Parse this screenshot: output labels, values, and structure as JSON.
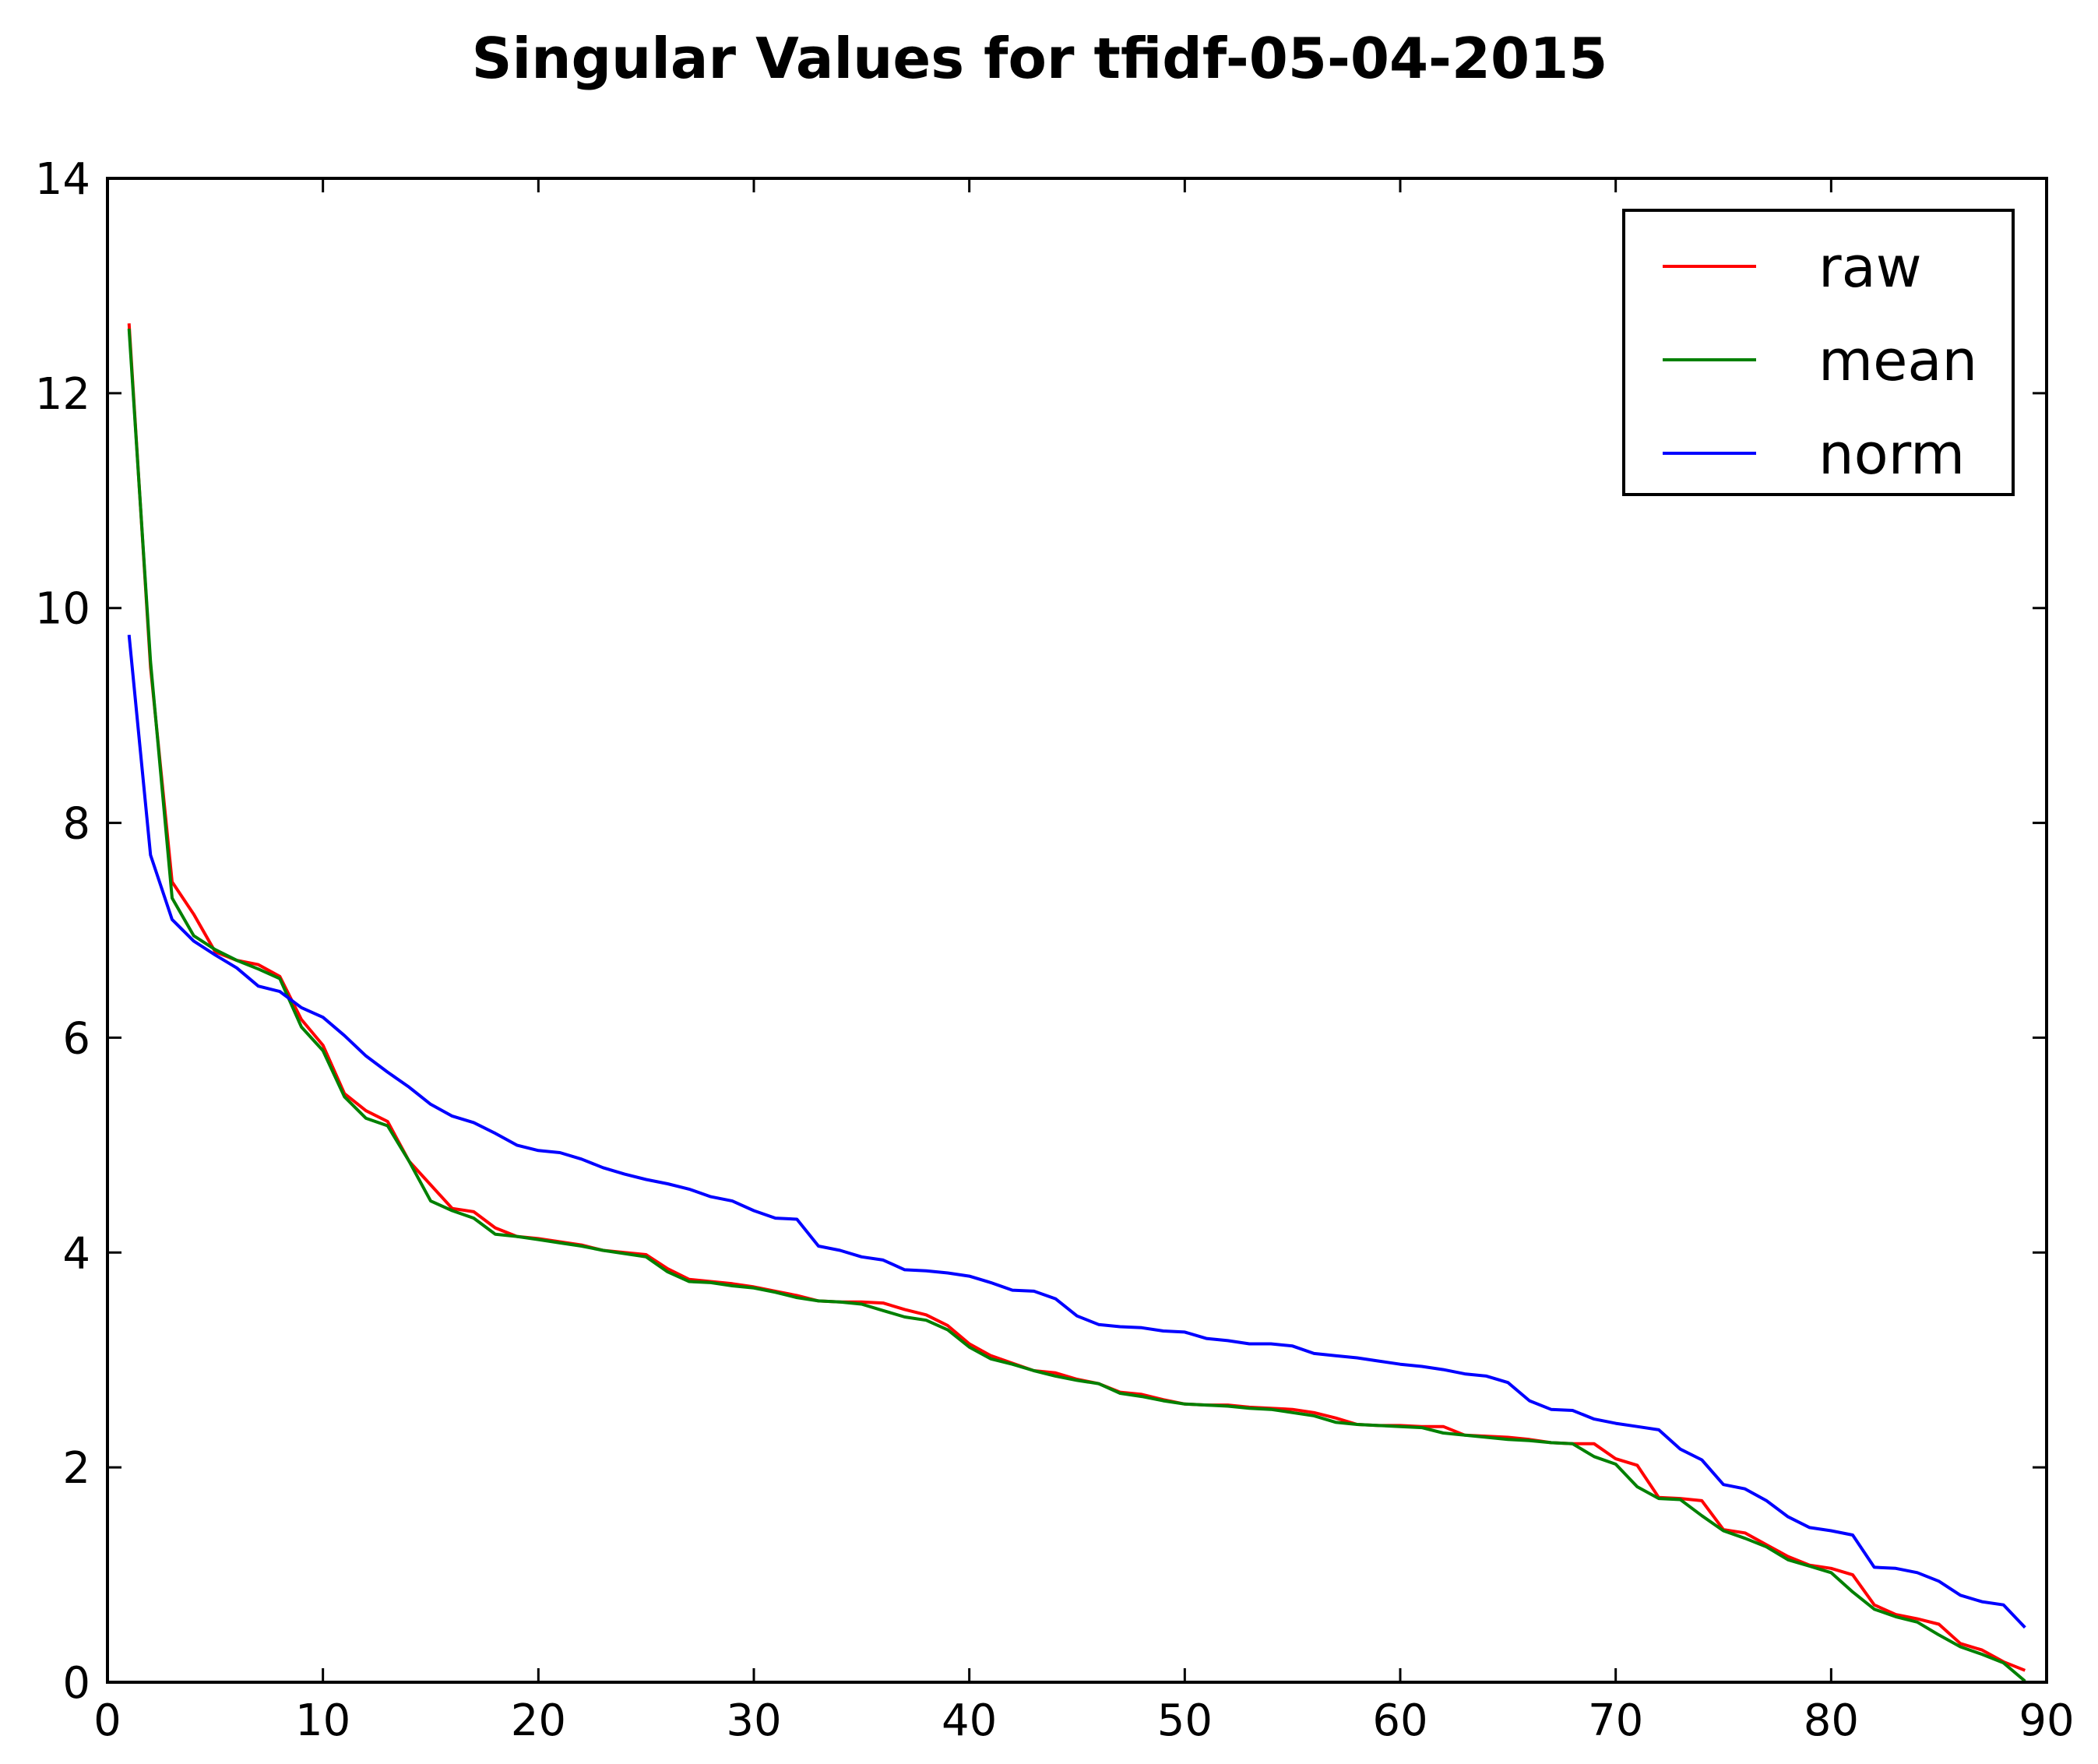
{
  "chart_data": {
    "type": "line",
    "title": "Singular Values for tfidf-05-04-2015",
    "xlabel": "",
    "ylabel": "",
    "xlim": [
      0,
      90
    ],
    "ylim": [
      0,
      14
    ],
    "xticks": [
      0,
      10,
      20,
      30,
      40,
      50,
      60,
      70,
      80,
      90
    ],
    "yticks": [
      0,
      2,
      4,
      6,
      8,
      10,
      12,
      14
    ],
    "grid": false,
    "legend_position": "top-right",
    "series": [
      {
        "name": "raw",
        "color": "#ff0000",
        "x": [
          1,
          2,
          3,
          4,
          5,
          6,
          7,
          8,
          9,
          10,
          11,
          12,
          13,
          14,
          15,
          16,
          17,
          18,
          19,
          20,
          21,
          22,
          23,
          24,
          25,
          26,
          27,
          28,
          29,
          30,
          31,
          32,
          33,
          34,
          35,
          36,
          37,
          38,
          39,
          40,
          41,
          42,
          43,
          44,
          45,
          46,
          47,
          48,
          49,
          50,
          51,
          52,
          53,
          54,
          55,
          56,
          57,
          58,
          59,
          60,
          61,
          62,
          63,
          64,
          65,
          66,
          67,
          68,
          69,
          70,
          71,
          72,
          73,
          74,
          75,
          76,
          77,
          78,
          79,
          80,
          81,
          82,
          83,
          84,
          85,
          86,
          87,
          88,
          89
        ],
        "values": [
          12.65,
          9.45,
          7.45,
          7.15,
          6.8,
          6.72,
          6.68,
          6.57,
          6.17,
          5.93,
          5.48,
          5.32,
          5.22,
          4.85,
          4.63,
          4.41,
          4.38,
          4.23,
          4.15,
          4.13,
          4.1,
          4.07,
          4.02,
          4.0,
          3.98,
          3.85,
          3.75,
          3.73,
          3.71,
          3.68,
          3.64,
          3.6,
          3.55,
          3.54,
          3.54,
          3.53,
          3.47,
          3.42,
          3.32,
          3.15,
          3.04,
          2.97,
          2.9,
          2.88,
          2.82,
          2.78,
          2.7,
          2.68,
          2.63,
          2.59,
          2.58,
          2.58,
          2.56,
          2.55,
          2.54,
          2.51,
          2.46,
          2.4,
          2.39,
          2.39,
          2.38,
          2.38,
          2.3,
          2.29,
          2.28,
          2.26,
          2.23,
          2.22,
          2.22,
          2.08,
          2.02,
          1.72,
          1.71,
          1.69,
          1.42,
          1.39,
          1.28,
          1.17,
          1.09,
          1.06,
          1.0,
          0.72,
          0.63,
          0.59,
          0.54,
          0.36,
          0.3,
          0.19,
          0.11
        ]
      },
      {
        "name": "mean",
        "color": "#008000",
        "x": [
          1,
          2,
          3,
          4,
          5,
          6,
          7,
          8,
          9,
          10,
          11,
          12,
          13,
          14,
          15,
          16,
          17,
          18,
          19,
          20,
          21,
          22,
          23,
          24,
          25,
          26,
          27,
          28,
          29,
          30,
          31,
          32,
          33,
          34,
          35,
          36,
          37,
          38,
          39,
          40,
          41,
          42,
          43,
          44,
          45,
          46,
          47,
          48,
          49,
          50,
          51,
          52,
          53,
          54,
          55,
          56,
          57,
          58,
          59,
          60,
          61,
          62,
          63,
          64,
          65,
          66,
          67,
          68,
          69,
          70,
          71,
          72,
          73,
          74,
          75,
          76,
          77,
          78,
          79,
          80,
          81,
          82,
          83,
          84,
          85,
          86,
          87,
          88,
          89
        ],
        "values": [
          12.6,
          9.5,
          7.3,
          6.95,
          6.82,
          6.72,
          6.64,
          6.55,
          6.1,
          5.88,
          5.45,
          5.25,
          5.18,
          4.85,
          4.48,
          4.39,
          4.32,
          4.17,
          4.15,
          4.12,
          4.09,
          4.06,
          4.02,
          3.99,
          3.96,
          3.82,
          3.73,
          3.72,
          3.69,
          3.67,
          3.63,
          3.58,
          3.55,
          3.54,
          3.52,
          3.46,
          3.4,
          3.37,
          3.28,
          3.12,
          3.01,
          2.96,
          2.9,
          2.85,
          2.81,
          2.78,
          2.69,
          2.66,
          2.62,
          2.59,
          2.58,
          2.57,
          2.55,
          2.54,
          2.51,
          2.48,
          2.42,
          2.4,
          2.39,
          2.38,
          2.37,
          2.32,
          2.3,
          2.28,
          2.26,
          2.25,
          2.23,
          2.22,
          2.1,
          2.03,
          1.82,
          1.71,
          1.7,
          1.55,
          1.41,
          1.34,
          1.26,
          1.14,
          1.08,
          1.02,
          0.84,
          0.68,
          0.61,
          0.56,
          0.44,
          0.33,
          0.26,
          0.18,
          0.01
        ]
      },
      {
        "name": "norm",
        "color": "#0000ff",
        "x": [
          1,
          2,
          3,
          4,
          5,
          6,
          7,
          8,
          9,
          10,
          11,
          12,
          13,
          14,
          15,
          16,
          17,
          18,
          19,
          20,
          21,
          22,
          23,
          24,
          25,
          26,
          27,
          28,
          29,
          30,
          31,
          32,
          33,
          34,
          35,
          36,
          37,
          38,
          39,
          40,
          41,
          42,
          43,
          44,
          45,
          46,
          47,
          48,
          49,
          50,
          51,
          52,
          53,
          54,
          55,
          56,
          57,
          58,
          59,
          60,
          61,
          62,
          63,
          64,
          65,
          66,
          67,
          68,
          69,
          70,
          71,
          72,
          73,
          74,
          75,
          76,
          77,
          78,
          79,
          80,
          81,
          82,
          83,
          84,
          85,
          86,
          87,
          88,
          89
        ],
        "values": [
          9.75,
          7.7,
          7.1,
          6.9,
          6.77,
          6.65,
          6.48,
          6.43,
          6.28,
          6.19,
          6.02,
          5.83,
          5.68,
          5.54,
          5.38,
          5.27,
          5.21,
          5.11,
          5.0,
          4.95,
          4.93,
          4.87,
          4.79,
          4.73,
          4.68,
          4.64,
          4.59,
          4.52,
          4.48,
          4.39,
          4.32,
          4.31,
          4.06,
          4.02,
          3.96,
          3.93,
          3.84,
          3.83,
          3.81,
          3.78,
          3.72,
          3.65,
          3.64,
          3.57,
          3.41,
          3.33,
          3.31,
          3.3,
          3.27,
          3.26,
          3.2,
          3.18,
          3.15,
          3.15,
          3.13,
          3.06,
          3.04,
          3.02,
          2.99,
          2.96,
          2.94,
          2.91,
          2.87,
          2.85,
          2.79,
          2.62,
          2.54,
          2.53,
          2.45,
          2.41,
          2.38,
          2.35,
          2.17,
          2.07,
          1.84,
          1.8,
          1.69,
          1.54,
          1.44,
          1.41,
          1.37,
          1.07,
          1.06,
          1.02,
          0.94,
          0.81,
          0.75,
          0.72,
          0.51
        ]
      }
    ]
  }
}
